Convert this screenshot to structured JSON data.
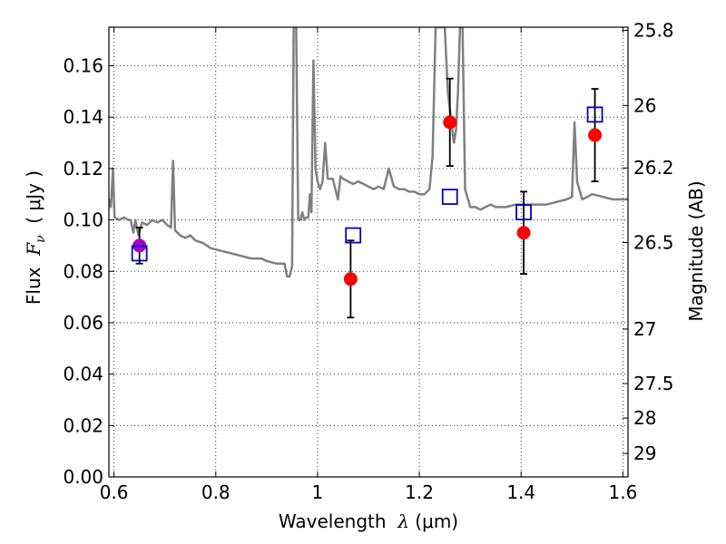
{
  "chart_data": {
    "type": "scatter",
    "xlabel": {
      "prefix": "Wavelength  ",
      "symbol": "λ",
      "unit": " (μm)"
    },
    "ylabel": {
      "prefix": "Flux  ",
      "symbol": "F",
      "subscript": "ν",
      "unit": "  ( μJy )"
    },
    "ylabel_right": "Magnitude (AB)",
    "xlim": [
      0.59,
      1.61
    ],
    "ylim": [
      0.0,
      0.175
    ],
    "x_ticks": [
      {
        "value": 0.6,
        "label": "0.6"
      },
      {
        "value": 0.8,
        "label": "0.8"
      },
      {
        "value": 1.0,
        "label": "1"
      },
      {
        "value": 1.2,
        "label": "1.2"
      },
      {
        "value": 1.4,
        "label": "1.4"
      },
      {
        "value": 1.6,
        "label": "1.6"
      }
    ],
    "y_ticks": [
      {
        "value": 0.0,
        "label": "0.00"
      },
      {
        "value": 0.02,
        "label": "0.02"
      },
      {
        "value": 0.04,
        "label": "0.04"
      },
      {
        "value": 0.06,
        "label": "0.06"
      },
      {
        "value": 0.08,
        "label": "0.08"
      },
      {
        "value": 0.1,
        "label": "0.10"
      },
      {
        "value": 0.12,
        "label": "0.12"
      },
      {
        "value": 0.14,
        "label": "0.14"
      },
      {
        "value": 0.16,
        "label": "0.16"
      }
    ],
    "y_right_ticks": [
      {
        "mag": 25.8,
        "label": "25.8"
      },
      {
        "mag": 26,
        "label": "26"
      },
      {
        "mag": 26.2,
        "label": "26.2"
      },
      {
        "mag": 26.5,
        "label": "26.5"
      },
      {
        "mag": 27,
        "label": "27"
      },
      {
        "mag": 27.5,
        "label": "27.5"
      },
      {
        "mag": 28,
        "label": "28"
      },
      {
        "mag": 29,
        "label": "29"
      }
    ],
    "grid": true,
    "series": [
      {
        "kind": "spectrum",
        "color": "#808080",
        "points": [
          [
            0.59,
            0.108
          ],
          [
            0.594,
            0.105
          ],
          [
            0.598,
            0.12
          ],
          [
            0.601,
            0.101
          ],
          [
            0.61,
            0.1
          ],
          [
            0.62,
            0.101
          ],
          [
            0.628,
            0.1
          ],
          [
            0.633,
            0.1
          ],
          [
            0.638,
            0.095
          ],
          [
            0.642,
            0.1
          ],
          [
            0.648,
            0.094
          ],
          [
            0.655,
            0.099
          ],
          [
            0.665,
            0.098
          ],
          [
            0.675,
            0.1
          ],
          [
            0.685,
            0.099
          ],
          [
            0.695,
            0.1
          ],
          [
            0.705,
            0.098
          ],
          [
            0.712,
            0.097
          ],
          [
            0.716,
            0.123
          ],
          [
            0.72,
            0.096
          ],
          [
            0.73,
            0.094
          ],
          [
            0.74,
            0.093
          ],
          [
            0.75,
            0.094
          ],
          [
            0.76,
            0.092
          ],
          [
            0.775,
            0.091
          ],
          [
            0.79,
            0.089
          ],
          [
            0.81,
            0.088
          ],
          [
            0.83,
            0.087
          ],
          [
            0.85,
            0.086
          ],
          [
            0.87,
            0.085
          ],
          [
            0.89,
            0.085
          ],
          [
            0.9,
            0.084
          ],
          [
            0.92,
            0.083
          ],
          [
            0.935,
            0.083
          ],
          [
            0.94,
            0.078
          ],
          [
            0.945,
            0.078
          ],
          [
            0.95,
            0.082
          ],
          [
            0.953,
            0.175
          ],
          [
            0.958,
            0.175
          ],
          [
            0.962,
            0.1
          ],
          [
            0.966,
            0.1
          ],
          [
            0.97,
            0.103
          ],
          [
            0.974,
            0.1
          ],
          [
            0.978,
            0.101
          ],
          [
            0.982,
            0.101
          ],
          [
            0.985,
            0.11
          ],
          [
            0.988,
            0.103
          ],
          [
            0.992,
            0.162
          ],
          [
            0.996,
            0.12
          ],
          [
            1.0,
            0.115
          ],
          [
            1.005,
            0.112
          ],
          [
            1.01,
            0.115
          ],
          [
            1.015,
            0.13
          ],
          [
            1.02,
            0.116
          ],
          [
            1.03,
            0.116
          ],
          [
            1.035,
            0.112
          ],
          [
            1.04,
            0.108
          ],
          [
            1.045,
            0.117
          ],
          [
            1.05,
            0.116
          ],
          [
            1.06,
            0.115
          ],
          [
            1.07,
            0.114
          ],
          [
            1.08,
            0.115
          ],
          [
            1.09,
            0.114
          ],
          [
            1.1,
            0.113
          ],
          [
            1.11,
            0.112
          ],
          [
            1.12,
            0.113
          ],
          [
            1.13,
            0.112
          ],
          [
            1.14,
            0.12
          ],
          [
            1.15,
            0.113
          ],
          [
            1.16,
            0.112
          ],
          [
            1.17,
            0.112
          ],
          [
            1.18,
            0.111
          ],
          [
            1.19,
            0.111
          ],
          [
            1.2,
            0.11
          ],
          [
            1.21,
            0.11
          ],
          [
            1.22,
            0.112
          ],
          [
            1.226,
            0.125
          ],
          [
            1.232,
            0.175
          ],
          [
            1.24,
            0.175
          ],
          [
            1.25,
            0.175
          ],
          [
            1.256,
            0.15
          ],
          [
            1.262,
            0.14
          ],
          [
            1.268,
            0.13
          ],
          [
            1.272,
            0.135
          ],
          [
            1.276,
            0.15
          ],
          [
            1.28,
            0.175
          ],
          [
            1.285,
            0.175
          ],
          [
            1.29,
            0.112
          ],
          [
            1.3,
            0.105
          ],
          [
            1.31,
            0.105
          ],
          [
            1.32,
            0.104
          ],
          [
            1.33,
            0.105
          ],
          [
            1.34,
            0.106
          ],
          [
            1.35,
            0.105
          ],
          [
            1.37,
            0.105
          ],
          [
            1.39,
            0.106
          ],
          [
            1.41,
            0.106
          ],
          [
            1.43,
            0.106
          ],
          [
            1.45,
            0.106
          ],
          [
            1.47,
            0.107
          ],
          [
            1.49,
            0.108
          ],
          [
            1.5,
            0.109
          ],
          [
            1.505,
            0.138
          ],
          [
            1.51,
            0.115
          ],
          [
            1.52,
            0.108
          ],
          [
            1.53,
            0.109
          ],
          [
            1.54,
            0.11
          ],
          [
            1.56,
            0.109
          ],
          [
            1.58,
            0.108
          ],
          [
            1.6,
            0.108
          ],
          [
            1.61,
            0.108
          ]
        ]
      },
      {
        "kind": "observed",
        "marker": "circle",
        "color": "#ff0000",
        "points": [
          {
            "x": 0.65,
            "y": 0.09,
            "yerr": 0.007
          },
          {
            "x": 1.065,
            "y": 0.077,
            "yerr": 0.015
          },
          {
            "x": 1.26,
            "y": 0.138,
            "yerr": 0.017
          },
          {
            "x": 1.405,
            "y": 0.095,
            "yerr": 0.016
          },
          {
            "x": 1.545,
            "y": 0.133,
            "yerr": 0.018
          }
        ]
      },
      {
        "kind": "model",
        "marker": "square",
        "color": "#0000cc",
        "points": [
          {
            "x": 0.65,
            "y": 0.087
          },
          {
            "x": 1.07,
            "y": 0.094
          },
          {
            "x": 1.26,
            "y": 0.109
          },
          {
            "x": 1.405,
            "y": 0.103
          },
          {
            "x": 1.545,
            "y": 0.141
          }
        ]
      }
    ],
    "overlap_marker_color": "#aa00cc"
  }
}
